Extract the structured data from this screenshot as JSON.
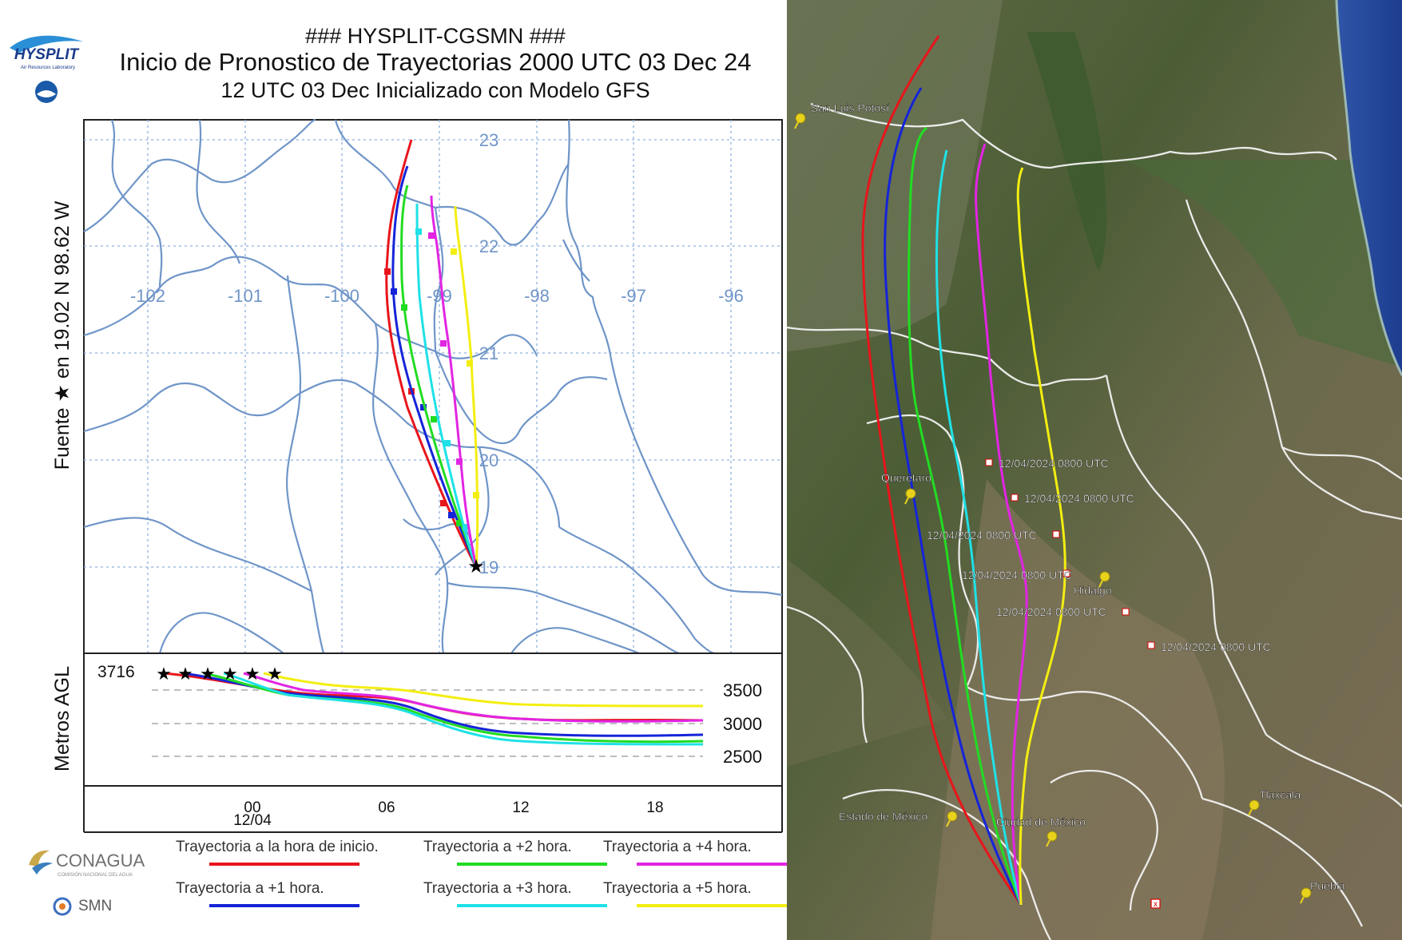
{
  "header": {
    "line1": "### HYSPLIT-CGSMN ###",
    "line2": "Inicio de Pronostico de Trayectorias 2000 UTC 03 Dec 24",
    "line3": "12 UTC 03 Dec    Inicializado con Modelo GFS"
  },
  "logos": {
    "hysplit": "HYSPLIT",
    "hysplit_sub": "Air Resources Laboratory",
    "conagua": "CONAGUA",
    "conagua_sub": "COMISIÓN NACIONAL DEL AGUA",
    "smn": "SMN"
  },
  "map": {
    "lon_labels": [
      "-102",
      "-101",
      "-100",
      "-99",
      "-98",
      "-97",
      "-96"
    ],
    "lat_labels": [
      "23",
      "22",
      "21",
      "20",
      "19"
    ],
    "source_label": "Fuente ★ en 19.02 N 98.62 W"
  },
  "height_plot": {
    "ylabel": "Metros AGL",
    "start_value": "3716",
    "ticks": [
      "3500",
      "3000",
      "2500"
    ],
    "x_ticks": [
      "00",
      "06",
      "12",
      "18"
    ],
    "x_date": "12/04"
  },
  "legend": [
    {
      "label": "Trayectoria a la hora de inicio.",
      "color": "#e8151b"
    },
    {
      "label": "Trayectoria a +1 hora.",
      "color": "#1524d8"
    },
    {
      "label": "Trayectoria a +2 hora.",
      "color": "#22dc22"
    },
    {
      "label": "Trayectoria a +3 hora.",
      "color": "#1fe1e6"
    },
    {
      "label": "Trayectoria a +4 hora.",
      "color": "#e225e2"
    },
    {
      "label": "Trayectoria a +5 hora.",
      "color": "#f3ee11"
    }
  ],
  "satellite": {
    "places": [
      "San Luis Potosí",
      "Querétaro",
      "Hidalgo",
      "Estado de México",
      "Ciudad de México",
      "Tlaxcala",
      "Puebla"
    ],
    "time_labels": [
      "12/04/2024 0800 UTC",
      "12/04/2024 0800 UTC",
      "12/04/2024 0800 UTC",
      "12/04/2024 0800 UTC",
      "12/04/2024 0800 UTC",
      "12/04/2024 0800 UTC"
    ]
  }
}
